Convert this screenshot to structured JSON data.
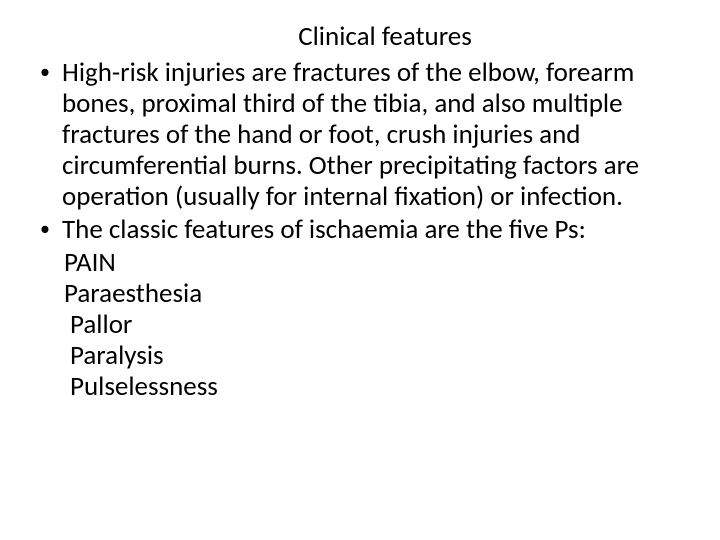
{
  "title": "Clinical features",
  "bullets": [
    {
      "text": "High-risk injuries are fractures of the elbow, forearm bones, proximal third of the tibia, and also multiple fractures of the hand or foot, crush injuries and circumferential burns. Other precipitating factors are operation (usually for internal fixation) or infection."
    },
    {
      "text": "The classic features of ischaemia are the five Ps:"
    }
  ],
  "p_list": [
    "PAIN",
    "Paraesthesia",
    "Pallor",
    "Paralysis",
    "Pulselessness"
  ],
  "colors": {
    "background": "#ffffff",
    "text": "#000000"
  },
  "fontsize": 27
}
